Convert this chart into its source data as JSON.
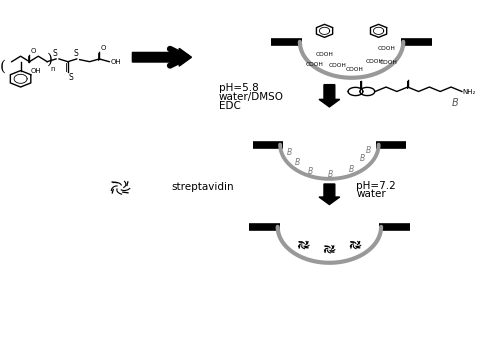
{
  "background_color": "#ffffff",
  "line_color": "#000000",
  "gray_color": "#999999",
  "light_gray": "#aaaaaa",
  "text_color": "#000000",
  "figsize": [
    5.0,
    3.44
  ],
  "dpi": 100,
  "labels": {
    "ph1": "pH=5.8",
    "solvent1": "water/DMSO",
    "reagent1": "EDC",
    "protein": "streptavidin",
    "ph2": "pH=7.2",
    "solvent2": "water",
    "biotin_label": "B"
  }
}
